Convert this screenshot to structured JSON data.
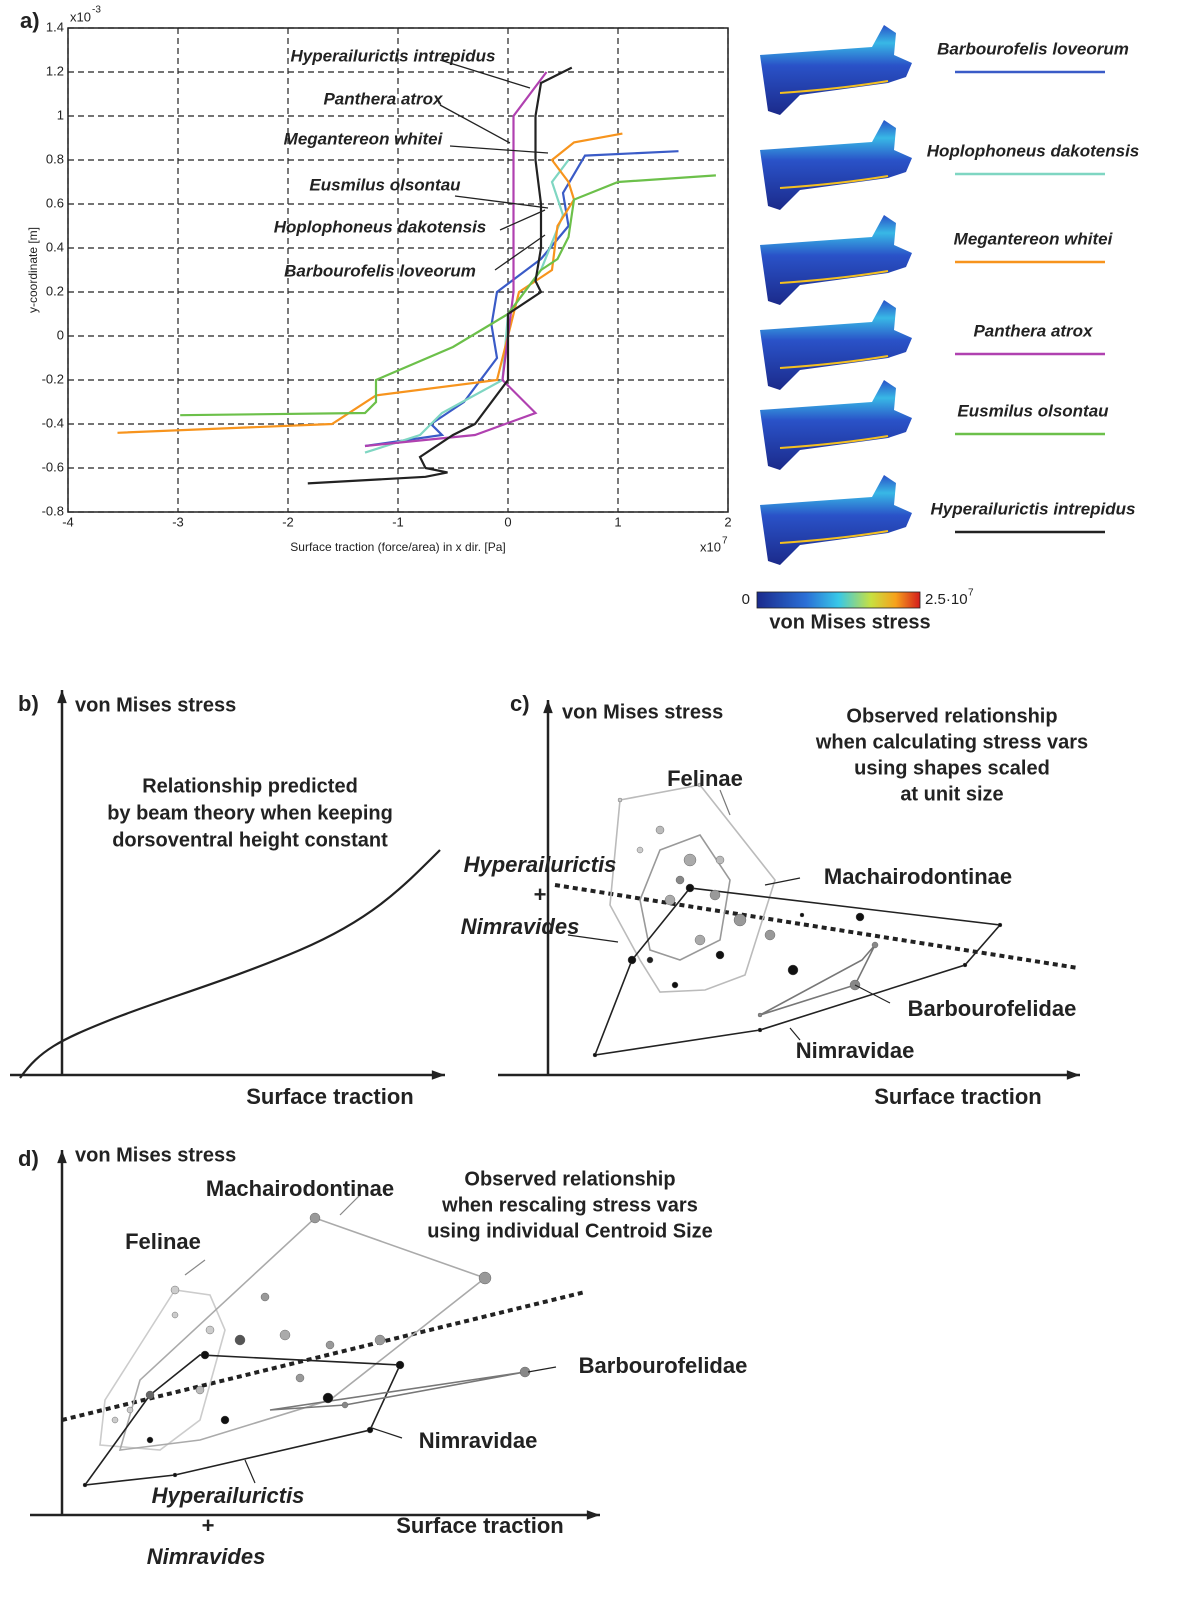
{
  "panel_labels": [
    "a)",
    "b)",
    "c)",
    "d)"
  ],
  "chart_data": {
    "type": "line",
    "x_label": "Surface traction (force/area) in x dir. [Pa]",
    "y_label": "y-coordinate [m]",
    "x_multiplier": "x10",
    "x_exponent": "7",
    "y_multiplier": "x10",
    "y_exponent": "-3",
    "xlim": [
      -4,
      2
    ],
    "xticks": [
      -4,
      -3,
      -2,
      -1,
      0,
      1,
      2
    ],
    "ylim": [
      -0.8,
      1.4
    ],
    "yticks": [
      -0.8,
      -0.6,
      -0.4,
      -0.2,
      0,
      0.2,
      0.4,
      0.6,
      0.8,
      1,
      1.2,
      1.4
    ],
    "grid": true,
    "series": [
      {
        "name": "Barbourofelis loveorum",
        "color": "#3a5bc7",
        "x": [
          1.55,
          0.7,
          0.5,
          0.55,
          0.3,
          -0.1,
          -0.15,
          -0.1,
          -0.4,
          -0.7,
          -0.6,
          -1.3
        ],
        "y": [
          0.84,
          0.82,
          0.65,
          0.5,
          0.35,
          0.2,
          0.05,
          -0.1,
          -0.3,
          -0.4,
          -0.45,
          -0.5
        ]
      },
      {
        "name": "Hoplophoneus dakotensis",
        "color": "#7fd6c2",
        "x": [
          0.55,
          0.4,
          0.5,
          0.3,
          0,
          -0.05,
          -0.6,
          -0.8,
          -1.3
        ],
        "y": [
          0.8,
          0.7,
          0.55,
          0.3,
          0.1,
          -0.2,
          -0.35,
          -0.45,
          -0.53
        ]
      },
      {
        "name": "Megantereon whitei",
        "color": "#f7941d",
        "x": [
          1.04,
          0.6,
          0.4,
          0.55,
          0.6,
          0.45,
          0.4,
          0.1,
          0,
          -0.1,
          -1.2,
          -1.6,
          -3.55
        ],
        "y": [
          0.92,
          0.88,
          0.8,
          0.7,
          0.62,
          0.5,
          0.3,
          0.2,
          0,
          -0.2,
          -0.27,
          -0.4,
          -0.44
        ]
      },
      {
        "name": "Panthera atrox",
        "color": "#b041b0",
        "x": [
          0.35,
          0.05,
          0.05,
          0.05,
          0,
          -0.05,
          0.25,
          -0.3,
          -1.3
        ],
        "y": [
          1.2,
          1,
          0.6,
          0.2,
          0,
          -0.2,
          -0.35,
          -0.45,
          -0.5
        ]
      },
      {
        "name": "Eusmilus olsontau",
        "color": "#6cc04a",
        "x": [
          1.89,
          1,
          0.6,
          0.55,
          0.45,
          0.3,
          0,
          -0.5,
          -1.2,
          -1.2,
          -1.3,
          -2.98
        ],
        "y": [
          0.73,
          0.7,
          0.62,
          0.45,
          0.35,
          0.3,
          0.1,
          -0.05,
          -0.2,
          -0.3,
          -0.35,
          -0.36
        ]
      },
      {
        "name": "Hyperailurictis intrepidus",
        "color": "#222222",
        "x": [
          0.58,
          0.3,
          0.25,
          0.25,
          0.3,
          0.3,
          0.25,
          0.3,
          0,
          0,
          0,
          -0.3,
          -0.5,
          -0.8,
          -0.75,
          -0.55,
          -0.75,
          -1.82
        ],
        "y": [
          1.22,
          1.15,
          1,
          0.8,
          0.6,
          0.4,
          0.25,
          0.2,
          0.1,
          0,
          -0.2,
          -0.4,
          -0.45,
          -0.55,
          -0.6,
          -0.62,
          -0.64,
          -0.67
        ]
      }
    ]
  },
  "colorbar": {
    "min_label": "0",
    "max_label": "2.5·10",
    "max_exponent": "7",
    "title": "von Mises stress"
  },
  "panel_b": {
    "y_label": "von Mises stress",
    "x_label": "Surface traction",
    "note": [
      "Relationship predicted",
      "by beam theory when keeping",
      "dorsoventral height constant"
    ]
  },
  "panel_c": {
    "y_label": "von Mises stress",
    "x_label": "Surface traction",
    "note": [
      "Observed relationship",
      "when calculating stress vars",
      "using shapes scaled",
      "at unit size"
    ],
    "groups": [
      "Felinae",
      "Machairodontinae",
      "Barbourofelidae",
      "Nimravidae"
    ],
    "hyper": [
      "Hyperailurictis",
      "+",
      "Nimravides"
    ]
  },
  "panel_d": {
    "y_label": "von Mises stress",
    "x_label": "Surface traction",
    "note": [
      "Observed relationship",
      "when rescaling stress vars",
      "using individual Centroid Size"
    ],
    "groups": [
      "Felinae",
      "Machairodontinae",
      "Barbourofelidae",
      "Nimravidae"
    ],
    "hyper": [
      "Hyperailurictis",
      "+",
      "Nimravides"
    ]
  }
}
